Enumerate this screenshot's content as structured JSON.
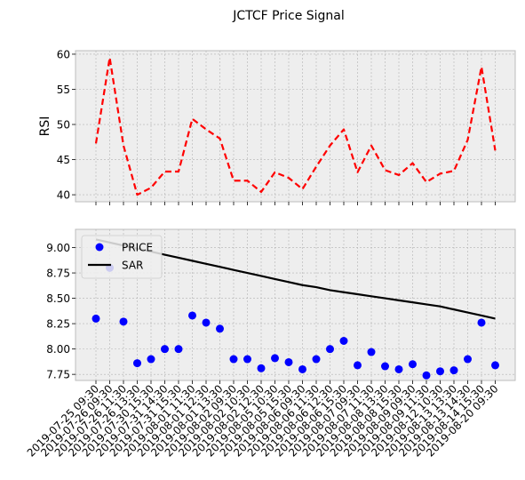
{
  "chart_data": {
    "title": "JCTCF Price Signal",
    "x_dates": [
      "2019-07-25 09:30",
      "2019-07-26 09:30",
      "2019-07-26 11:30",
      "2019-07-26 13:30",
      "2019-07-30 15:30",
      "2019-07-31 14:30",
      "2019-07-31 15:30",
      "2019-08-01 11:30",
      "2019-08-01 12:30",
      "2019-08-01 13:30",
      "2019-08-02 09:30",
      "2019-08-02 10:30",
      "2019-08-02 12:30",
      "2019-08-05 10:30",
      "2019-08-05 15:30",
      "2019-08-06 09:30",
      "2019-08-06 11:30",
      "2019-08-06 12:30",
      "2019-08-06 15:30",
      "2019-08-07 09:30",
      "2019-08-07 11:30",
      "2019-08-08 13:30",
      "2019-08-08 15:30",
      "2019-08-09 09:30",
      "2019-08-09 11:30",
      "2019-08-12 10:30",
      "2019-08-13 13:30",
      "2019-08-13 14:30",
      "2019-08-14 15:30",
      "2019-08-20 09:30"
    ],
    "panels": [
      {
        "type": "line",
        "ylabel": "RSI",
        "ylim": [
          39,
          60.5
        ],
        "yticks": [
          40,
          45,
          50,
          55,
          60
        ],
        "grid": true,
        "series": [
          {
            "style": "dashed",
            "color": "#ff0000",
            "values": [
              47.3,
              59.5,
              47.0,
              40.0,
              41.0,
              43.3,
              43.3,
              50.8,
              49.3,
              48.0,
              42.0,
              42.0,
              40.4,
              43.2,
              42.4,
              40.8,
              44.0,
              47.0,
              49.3,
              43.2,
              47.0,
              43.5,
              42.8,
              44.5,
              41.8,
              43.0,
              43.4,
              47.8,
              58.2,
              46.3
            ]
          }
        ]
      },
      {
        "type": "line+scatter",
        "ylabel": "",
        "ylim": [
          7.69,
          9.18
        ],
        "yticks": [
          7.75,
          8.0,
          8.25,
          8.5,
          8.75,
          9.0
        ],
        "grid": true,
        "legend": "top-left",
        "series": [
          {
            "name": "PRICE",
            "marker": "circle",
            "color": "#0000ff",
            "values": [
              8.3,
              8.8,
              8.27,
              7.86,
              7.9,
              8.0,
              8.0,
              8.33,
              8.26,
              8.2,
              7.9,
              7.9,
              7.81,
              7.91,
              7.87,
              7.8,
              7.9,
              8.0,
              8.08,
              7.84,
              7.97,
              7.83,
              7.8,
              7.85,
              7.74,
              7.78,
              7.79,
              7.9,
              8.26,
              7.84
            ]
          },
          {
            "name": "SAR",
            "style": "solid",
            "color": "#000000",
            "values": [
              9.08,
              9.05,
              9.02,
              8.99,
              8.96,
              8.93,
              8.9,
              8.87,
              8.84,
              8.81,
              8.78,
              8.75,
              8.72,
              8.69,
              8.66,
              8.63,
              8.61,
              8.58,
              8.56,
              8.54,
              8.52,
              8.5,
              8.48,
              8.46,
              8.44,
              8.42,
              8.39,
              8.36,
              8.33,
              8.3
            ]
          }
        ]
      }
    ]
  },
  "colors": {
    "axes_bg": "#eeeeee",
    "grid": "#b2b2b2",
    "spine": "#bcbcbc"
  }
}
